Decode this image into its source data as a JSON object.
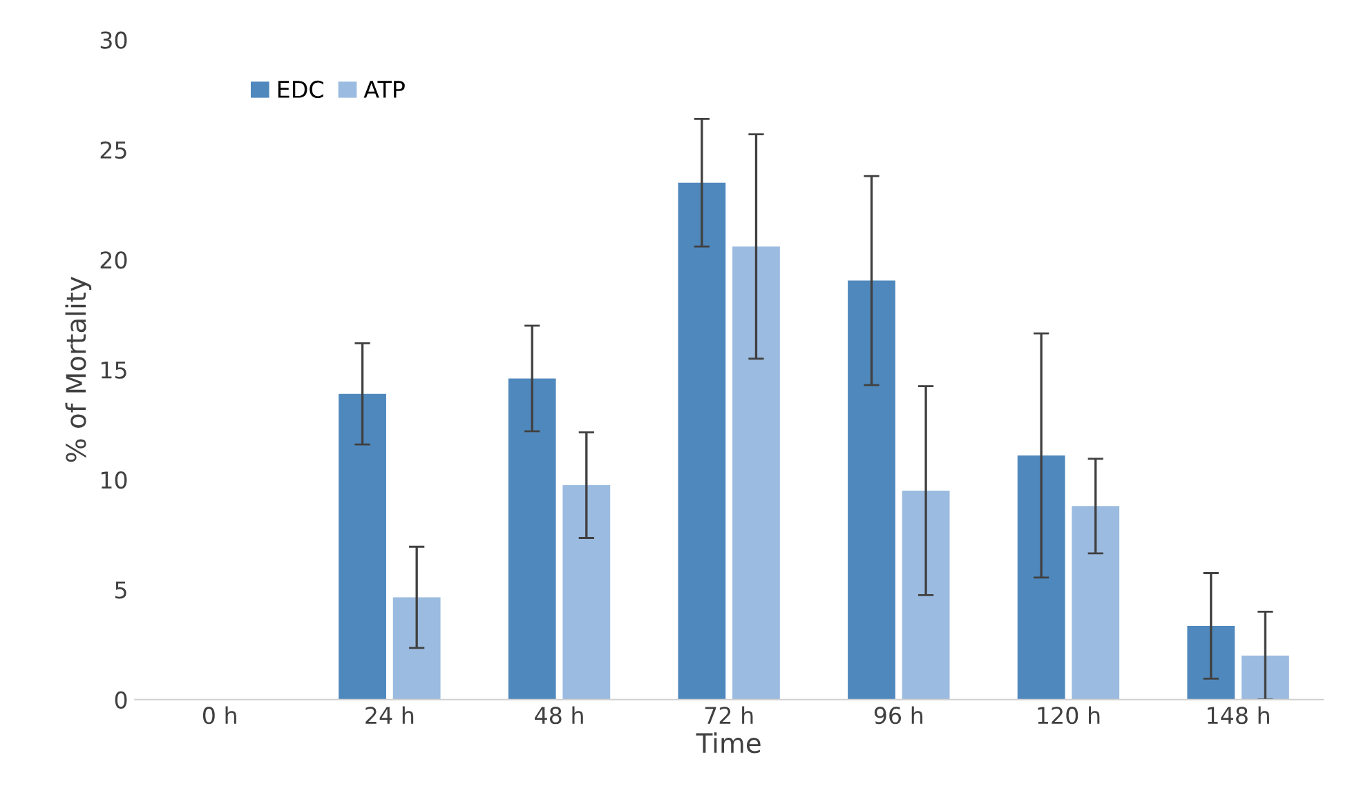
{
  "chart_data": {
    "type": "bar",
    "xlabel": "Time",
    "ylabel": "% of Mortality",
    "categories": [
      "0 h",
      "24 h",
      "48 h",
      "72 h",
      "96 h",
      "120 h",
      "148 h"
    ],
    "series": [
      {
        "name": "EDC",
        "color": "#4f88bd",
        "values": [
          0,
          13.9,
          14.6,
          23.5,
          19.05,
          11.1,
          3.35
        ],
        "errors": [
          null,
          2.3,
          2.4,
          2.9,
          4.75,
          5.55,
          2.4
        ]
      },
      {
        "name": "ATP",
        "color": "#9bbbe0",
        "values": [
          0,
          4.65,
          9.75,
          20.6,
          9.5,
          8.8,
          2.0
        ],
        "errors": [
          null,
          2.3,
          2.4,
          5.1,
          4.75,
          2.15,
          2.0
        ]
      }
    ],
    "ylim": [
      0,
      30
    ],
    "yticks": [
      0,
      5,
      10,
      15,
      20,
      25,
      30
    ],
    "grid": false,
    "legend": "top left"
  }
}
